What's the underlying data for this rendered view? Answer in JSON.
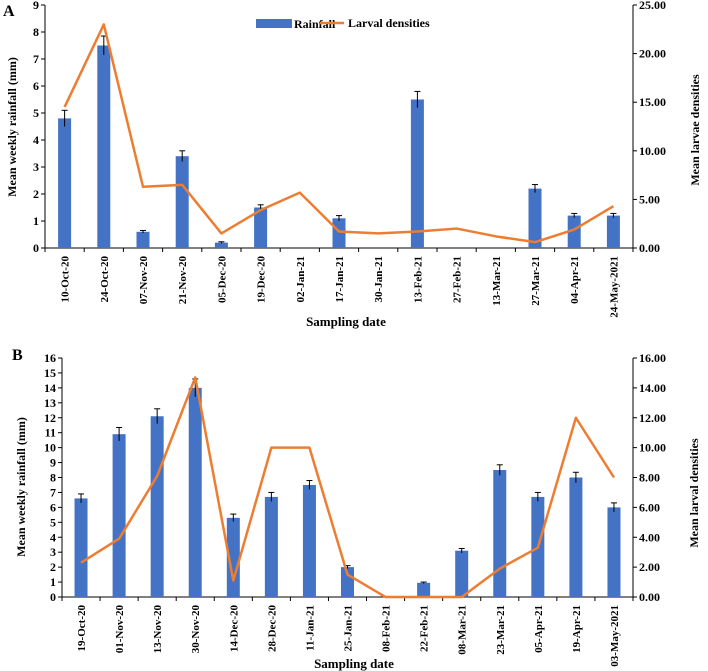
{
  "colors": {
    "bar": "#4472C4",
    "line": "#ED7D31",
    "axis": "#000000"
  },
  "chart_data": [
    {
      "type": "bar",
      "panel_label": "A",
      "categories": [
        "10-Oct-20",
        "24-Oct-20",
        "07-Nov-20",
        "21-Nov-20",
        "05-Dec-20",
        "19-Dec-20",
        "02-Jan-21",
        "17-Jan-21",
        "30-Jan-21",
        "13-Feb-21",
        "27-Feb-21",
        "13-Mar-21",
        "27-Mar-21",
        "04-Apr-21",
        "24-May-2021"
      ],
      "series": [
        {
          "name": "Rainfall",
          "type": "bar",
          "axis": "left",
          "values": [
            4.8,
            7.5,
            0.6,
            3.4,
            0.2,
            1.5,
            0,
            1.1,
            0,
            5.5,
            0,
            0,
            2.2,
            1.2,
            1.2
          ],
          "errors": [
            0.3,
            0.35,
            0.05,
            0.2,
            0.03,
            0.1,
            0,
            0.1,
            0,
            0.3,
            0,
            0,
            0.15,
            0.08,
            0.08
          ]
        },
        {
          "name": "Larval densities",
          "type": "line",
          "axis": "right",
          "values": [
            14.5,
            23.0,
            6.3,
            6.5,
            1.5,
            3.9,
            5.7,
            1.7,
            1.5,
            1.7,
            2.0,
            1.2,
            0.6,
            1.9,
            4.3
          ]
        }
      ],
      "xlabel": "Sampling date",
      "ylabel": "Mean weekly rainfall (mm)",
      "y2label": "Mean larvae densities",
      "ylim": [
        0,
        9
      ],
      "y2lim": [
        0,
        25
      ],
      "yticks": [
        "0",
        "1",
        "2",
        "3",
        "4",
        "5",
        "6",
        "7",
        "8",
        "9"
      ],
      "y2ticks": [
        "0.00",
        "5.00",
        "10.00",
        "15.00",
        "20.00",
        "25.00"
      ],
      "legend": {
        "position": "top-center",
        "entries": [
          "Rainfall",
          "Larval densities"
        ]
      }
    },
    {
      "type": "bar",
      "panel_label": "B",
      "categories": [
        "19-Oct-20",
        "01-Nov-20",
        "13-Nov-20",
        "30-Nov-20",
        "14-Dec-20",
        "28-Dec-20",
        "11-Jan-21",
        "25-Jan-21",
        "08-Feb-21",
        "22-Feb-21",
        "08-Mar-21",
        "23-Mar-21",
        "05-Apr-21",
        "19-Apr-21",
        "03-May-2021"
      ],
      "series": [
        {
          "name": "Rainfall",
          "type": "bar",
          "axis": "left",
          "values": [
            6.6,
            10.9,
            12.1,
            14.0,
            5.3,
            6.7,
            7.5,
            2.0,
            0,
            0.95,
            3.1,
            8.5,
            6.7,
            8.0,
            6.0
          ],
          "errors": [
            0.3,
            0.45,
            0.5,
            0.6,
            0.25,
            0.3,
            0.3,
            0.1,
            0,
            0.05,
            0.15,
            0.35,
            0.3,
            0.35,
            0.3
          ]
        },
        {
          "name": "Larval densities",
          "type": "line",
          "axis": "right",
          "values": [
            2.3,
            3.9,
            8.1,
            14.7,
            1.1,
            10.0,
            10.0,
            1.5,
            0.0,
            0.0,
            0.0,
            1.9,
            3.3,
            12.0,
            8.0
          ]
        }
      ],
      "xlabel": "Sampling date",
      "ylabel": "Mean weekly rainfall (mm)",
      "y2label": "Mean larval densities",
      "ylim": [
        0,
        16
      ],
      "y2lim": [
        0,
        16
      ],
      "yticks": [
        "0",
        "1",
        "2",
        "3",
        "4",
        "5",
        "6",
        "7",
        "8",
        "9",
        "10",
        "11",
        "12",
        "13",
        "14",
        "15",
        "16"
      ],
      "y2ticks": [
        "0.00",
        "2.00",
        "4.00",
        "6.00",
        "8.00",
        "10.00",
        "12.00",
        "14.00",
        "16.00"
      ]
    }
  ]
}
